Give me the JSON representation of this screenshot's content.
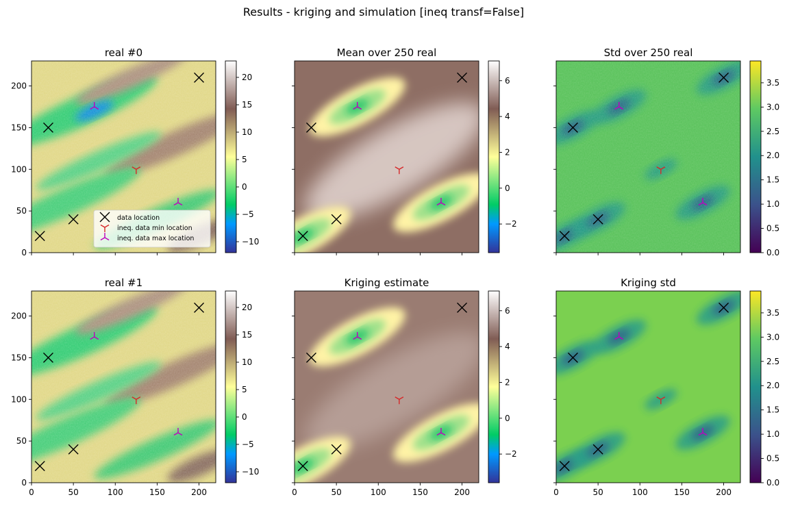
{
  "figure": {
    "suptitle": "Results - kriging and simulation [ineq transf=False]"
  },
  "chart_data": [
    {
      "type": "heatmap",
      "title": "real #0",
      "colormap": "terrain",
      "xlim": [
        0,
        220
      ],
      "ylim": [
        0,
        230
      ],
      "xticks": [
        0,
        50,
        100,
        150,
        200
      ],
      "yticks": [
        0,
        50,
        100,
        150,
        200
      ],
      "show_xticklabels": false,
      "show_yticklabels": true,
      "colorbar": {
        "min": -12,
        "max": 23,
        "ticks": [
          -10,
          -5,
          0,
          5,
          10,
          15,
          20
        ]
      },
      "points": {
        "data": [
          [
            10,
            20
          ],
          [
            20,
            150
          ],
          [
            50,
            40
          ],
          [
            200,
            210
          ]
        ],
        "ineq_min": [
          [
            125,
            100
          ]
        ],
        "ineq_max": [
          [
            75,
            175
          ],
          [
            175,
            60
          ]
        ]
      },
      "legend": {
        "position": "lower right",
        "entries": [
          "data location",
          "ineq. data min location",
          "ineq. data max location"
        ]
      }
    },
    {
      "type": "heatmap",
      "title": "Mean over 250 real",
      "colormap": "terrain",
      "xlim": [
        0,
        220
      ],
      "ylim": [
        0,
        230
      ],
      "xticks": [
        0,
        50,
        100,
        150,
        200
      ],
      "yticks": [
        0,
        50,
        100,
        150,
        200
      ],
      "show_xticklabels": false,
      "show_yticklabels": false,
      "colorbar": {
        "min": -3.6,
        "max": 7.1,
        "ticks": [
          -2,
          0,
          2,
          4,
          6
        ]
      },
      "points": {
        "data": [
          [
            10,
            20
          ],
          [
            20,
            150
          ],
          [
            50,
            40
          ],
          [
            200,
            210
          ]
        ],
        "ineq_min": [
          [
            125,
            100
          ]
        ],
        "ineq_max": [
          [
            75,
            175
          ],
          [
            175,
            60
          ]
        ]
      }
    },
    {
      "type": "heatmap",
      "title": "Std over 250 real",
      "colormap": "viridis",
      "xlim": [
        0,
        220
      ],
      "ylim": [
        0,
        230
      ],
      "xticks": [
        0,
        50,
        100,
        150,
        200
      ],
      "yticks": [
        0,
        50,
        100,
        150,
        200
      ],
      "show_xticklabels": false,
      "show_yticklabels": false,
      "colorbar": {
        "min": 0,
        "max": 3.95,
        "ticks": [
          0.0,
          0.5,
          1.0,
          1.5,
          2.0,
          2.5,
          3.0,
          3.5
        ]
      },
      "points": {
        "data": [
          [
            10,
            20
          ],
          [
            20,
            150
          ],
          [
            50,
            40
          ],
          [
            200,
            210
          ]
        ],
        "ineq_min": [
          [
            125,
            100
          ]
        ],
        "ineq_max": [
          [
            75,
            175
          ],
          [
            175,
            60
          ]
        ]
      }
    },
    {
      "type": "heatmap",
      "title": "real #1",
      "colormap": "terrain",
      "xlim": [
        0,
        220
      ],
      "ylim": [
        0,
        230
      ],
      "xticks": [
        0,
        50,
        100,
        150,
        200
      ],
      "yticks": [
        0,
        50,
        100,
        150,
        200
      ],
      "show_xticklabels": true,
      "show_yticklabels": true,
      "colorbar": {
        "min": -12,
        "max": 23,
        "ticks": [
          -10,
          -5,
          0,
          5,
          10,
          15,
          20
        ]
      },
      "points": {
        "data": [
          [
            10,
            20
          ],
          [
            20,
            150
          ],
          [
            50,
            40
          ],
          [
            200,
            210
          ]
        ],
        "ineq_min": [
          [
            125,
            100
          ]
        ],
        "ineq_max": [
          [
            75,
            175
          ],
          [
            175,
            60
          ]
        ]
      }
    },
    {
      "type": "heatmap",
      "title": "Kriging estimate",
      "colormap": "terrain",
      "xlim": [
        0,
        220
      ],
      "ylim": [
        0,
        230
      ],
      "xticks": [
        0,
        50,
        100,
        150,
        200
      ],
      "yticks": [
        0,
        50,
        100,
        150,
        200
      ],
      "show_xticklabels": true,
      "show_yticklabels": false,
      "colorbar": {
        "min": -3.6,
        "max": 7.1,
        "ticks": [
          -2,
          0,
          2,
          4,
          6
        ]
      },
      "points": {
        "data": [
          [
            10,
            20
          ],
          [
            20,
            150
          ],
          [
            50,
            40
          ],
          [
            200,
            210
          ]
        ],
        "ineq_min": [
          [
            125,
            100
          ]
        ],
        "ineq_max": [
          [
            75,
            175
          ],
          [
            175,
            60
          ]
        ]
      }
    },
    {
      "type": "heatmap",
      "title": "Kriging std",
      "colormap": "viridis",
      "xlim": [
        0,
        220
      ],
      "ylim": [
        0,
        230
      ],
      "xticks": [
        0,
        50,
        100,
        150,
        200
      ],
      "yticks": [
        0,
        50,
        100,
        150,
        200
      ],
      "show_xticklabels": true,
      "show_yticklabels": false,
      "colorbar": {
        "min": 0,
        "max": 3.95,
        "ticks": [
          0.0,
          0.5,
          1.0,
          1.5,
          2.0,
          2.5,
          3.0,
          3.5
        ]
      },
      "points": {
        "data": [
          [
            10,
            20
          ],
          [
            20,
            150
          ],
          [
            50,
            40
          ],
          [
            200,
            210
          ]
        ],
        "ineq_min": [
          [
            125,
            100
          ]
        ],
        "ineq_max": [
          [
            75,
            175
          ],
          [
            175,
            60
          ]
        ]
      }
    }
  ],
  "colors": {
    "data_marker": "#000000",
    "ineq_min_marker": "#d62728",
    "ineq_max_marker": "#bf00bf",
    "terrain_stops": [
      "#333399",
      "#0099ff",
      "#00cc66",
      "#ffff99",
      "#805c54",
      "#ffffff"
    ],
    "viridis_stops": [
      "#440154",
      "#3b528b",
      "#21918c",
      "#5ec962",
      "#fde725"
    ]
  }
}
